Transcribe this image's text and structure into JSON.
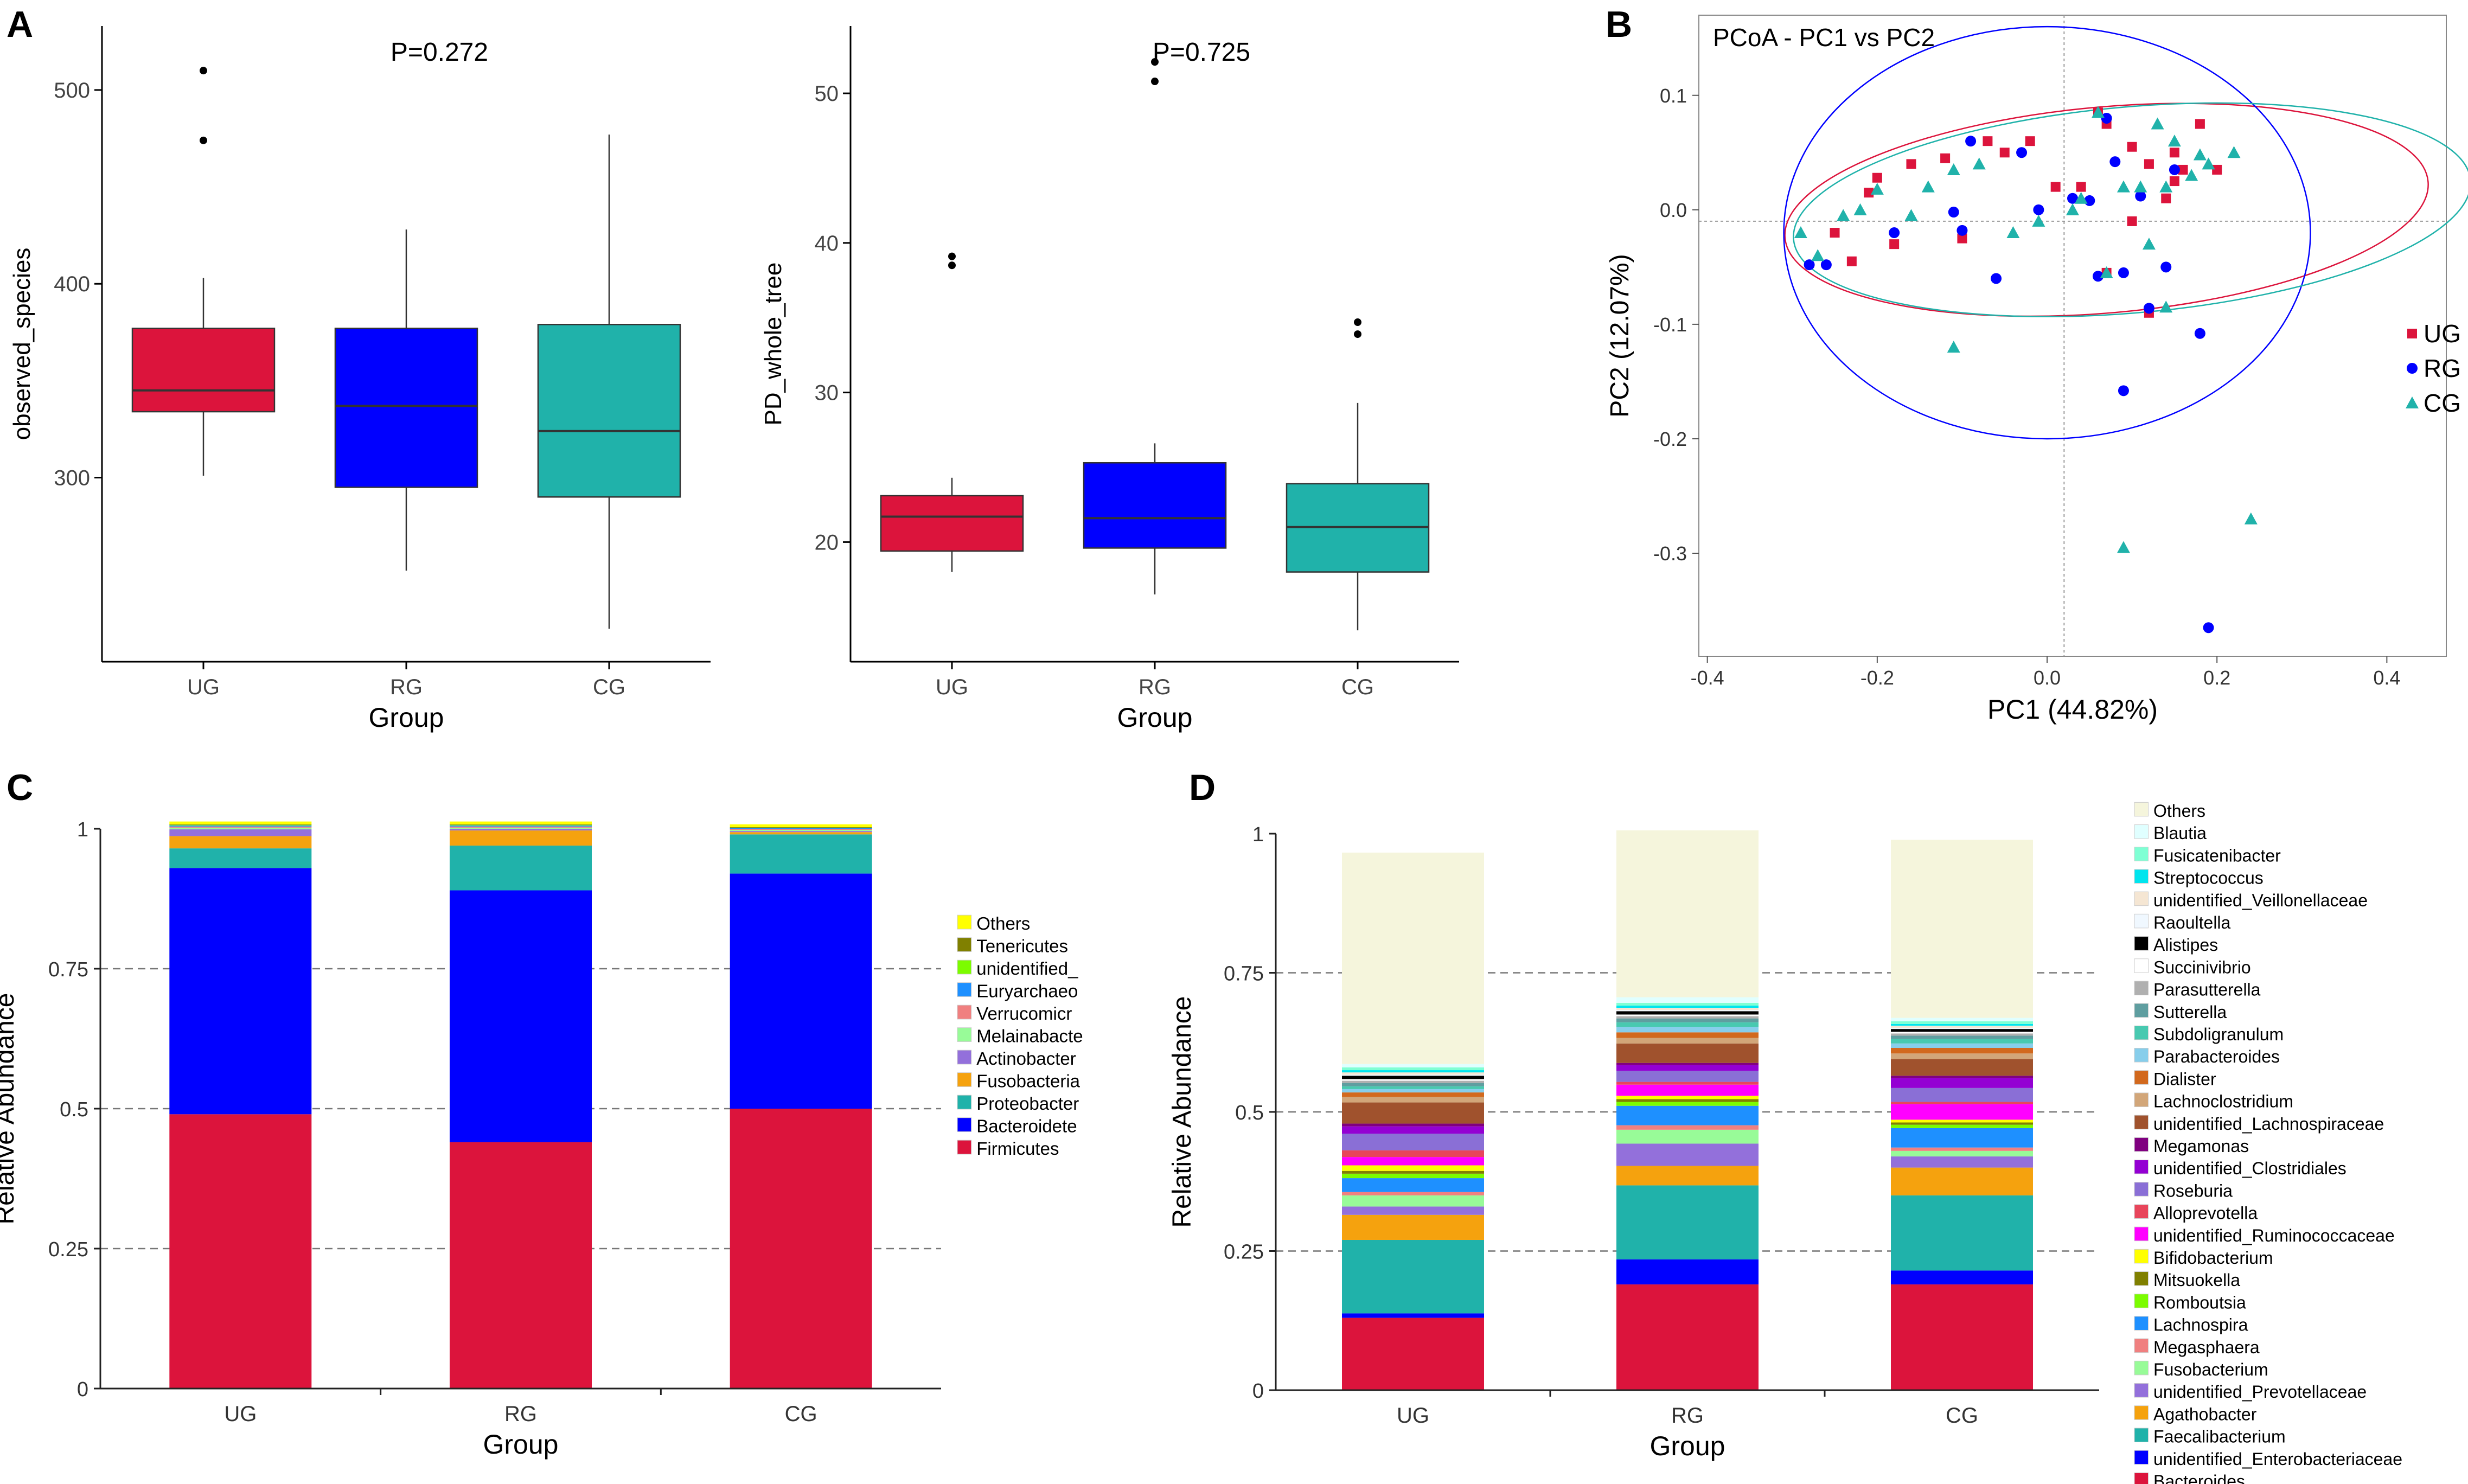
{
  "panel_labels": {
    "a": "A",
    "b": "B",
    "c": "C",
    "d": "D"
  },
  "colors": {
    "UG": "#dc143c",
    "RG": "#0000ff",
    "CG": "#20b2aa"
  },
  "chart_data": [
    {
      "id": "A1",
      "type": "box",
      "title": "P=0.272",
      "xlabel": "Group",
      "ylabel": "observed_species",
      "categories": [
        "UG",
        "RG",
        "CG"
      ],
      "yticks": [
        300,
        400,
        500
      ],
      "ylim": [
        205,
        533
      ],
      "boxes": [
        {
          "group": "UG",
          "whisker_low": 301,
          "q1": 334,
          "median": 345,
          "q3": 377,
          "whisker_high": 403,
          "outliers": [
            474,
            510
          ]
        },
        {
          "group": "RG",
          "whisker_low": 252,
          "q1": 295,
          "median": 337,
          "q3": 377,
          "whisker_high": 428,
          "outliers": []
        },
        {
          "group": "CG",
          "whisker_low": 222,
          "q1": 290,
          "median": 324,
          "q3": 379,
          "whisker_high": 477,
          "outliers": []
        }
      ]
    },
    {
      "id": "A2",
      "type": "box",
      "title": "P=0.725",
      "xlabel": "Group",
      "ylabel": "PD_whole_tree",
      "categories": [
        "UG",
        "RG",
        "CG"
      ],
      "yticks": [
        20,
        30,
        40,
        50
      ],
      "ylim": [
        12,
        54.5
      ],
      "boxes": [
        {
          "group": "UG",
          "whisker_low": 18.0,
          "q1": 19.4,
          "median": 21.7,
          "q3": 23.1,
          "whisker_high": 24.3,
          "outliers": [
            38.5,
            39.1
          ]
        },
        {
          "group": "RG",
          "whisker_low": 16.5,
          "q1": 19.6,
          "median": 21.6,
          "q3": 25.3,
          "whisker_high": 26.6,
          "outliers": [
            50.8,
            52.1
          ]
        },
        {
          "group": "CG",
          "whisker_low": 14.1,
          "q1": 18.0,
          "median": 21.0,
          "q3": 23.9,
          "whisker_high": 29.3,
          "outliers": [
            33.9,
            34.7
          ]
        }
      ]
    },
    {
      "id": "B",
      "type": "scatter",
      "title": "PCoA - PC1 vs PC2",
      "xlabel": "PC1 (44.82%)",
      "ylabel": "PC2 (12.07%)",
      "xticks": [
        -0.4,
        -0.2,
        0.0,
        0.2,
        0.4
      ],
      "yticks": [
        0.1,
        0.0,
        -0.1,
        -0.2,
        -0.3
      ],
      "xtick_labels": [
        "-0.4",
        "-0.2",
        "0.0",
        "0.2",
        "0.4"
      ],
      "ytick_labels": [
        "0.1",
        "0.0",
        "-0.1",
        "-0.2",
        "-0.3"
      ],
      "xlim": [
        -0.41,
        0.47
      ],
      "ylim": [
        -0.39,
        0.17
      ],
      "reference_lines": {
        "x": 0.02,
        "y": -0.01
      },
      "legend": [
        {
          "name": "UG",
          "marker": "square"
        },
        {
          "name": "RG",
          "marker": "circle"
        },
        {
          "name": "CG",
          "marker": "triangle"
        }
      ],
      "ellipses": [
        {
          "group": "UG",
          "cx": 0.07,
          "cy": 0.0,
          "rx": 0.38,
          "ry": 0.09,
          "angle_deg": 5
        },
        {
          "group": "RG",
          "cx": 0.0,
          "cy": -0.02,
          "rx": 0.31,
          "ry": 0.18,
          "angle_deg": 0
        },
        {
          "group": "CG",
          "cx": 0.1,
          "cy": 0.0,
          "rx": 0.4,
          "ry": 0.09,
          "angle_deg": 5
        }
      ],
      "series": [
        {
          "name": "UG",
          "points": [
            [
              -0.25,
              -0.02
            ],
            [
              -0.23,
              -0.045
            ],
            [
              -0.21,
              0.015
            ],
            [
              -0.2,
              0.028
            ],
            [
              -0.18,
              -0.03
            ],
            [
              -0.16,
              0.04
            ],
            [
              -0.12,
              0.045
            ],
            [
              -0.1,
              -0.025
            ],
            [
              -0.07,
              0.06
            ],
            [
              -0.05,
              0.05
            ],
            [
              -0.02,
              0.06
            ],
            [
              0.01,
              0.02
            ],
            [
              0.04,
              0.02
            ],
            [
              0.06,
              0.085
            ],
            [
              0.07,
              0.075
            ],
            [
              0.1,
              0.055
            ],
            [
              0.12,
              0.04
            ],
            [
              0.15,
              0.05
            ],
            [
              0.15,
              0.025
            ],
            [
              0.18,
              0.075
            ],
            [
              0.2,
              0.035
            ],
            [
              0.14,
              0.01
            ],
            [
              0.1,
              -0.01
            ],
            [
              0.12,
              -0.09
            ],
            [
              0.16,
              0.035
            ],
            [
              0.07,
              -0.055
            ]
          ]
        },
        {
          "name": "RG",
          "points": [
            [
              -0.28,
              -0.048
            ],
            [
              -0.26,
              -0.048
            ],
            [
              -0.18,
              -0.02
            ],
            [
              -0.11,
              -0.002
            ],
            [
              -0.1,
              -0.018
            ],
            [
              -0.09,
              0.06
            ],
            [
              -0.06,
              -0.06
            ],
            [
              -0.03,
              0.05
            ],
            [
              -0.01,
              0.0
            ],
            [
              0.03,
              0.01
            ],
            [
              0.06,
              -0.058
            ],
            [
              0.07,
              0.08
            ],
            [
              0.08,
              0.042
            ],
            [
              0.09,
              -0.055
            ],
            [
              0.11,
              0.012
            ],
            [
              0.14,
              -0.05
            ],
            [
              0.15,
              0.035
            ],
            [
              0.18,
              -0.108
            ],
            [
              0.12,
              -0.086
            ],
            [
              0.05,
              0.008
            ],
            [
              0.09,
              -0.158
            ],
            [
              0.19,
              -0.365
            ]
          ]
        },
        {
          "name": "CG",
          "points": [
            [
              -0.29,
              -0.02
            ],
            [
              -0.27,
              -0.04
            ],
            [
              -0.24,
              -0.005
            ],
            [
              -0.22,
              0.0
            ],
            [
              -0.2,
              0.018
            ],
            [
              -0.16,
              -0.005
            ],
            [
              -0.14,
              0.02
            ],
            [
              -0.11,
              0.035
            ],
            [
              -0.08,
              0.04
            ],
            [
              -0.04,
              -0.02
            ],
            [
              -0.01,
              -0.01
            ],
            [
              0.03,
              0.0
            ],
            [
              0.04,
              0.01
            ],
            [
              0.06,
              0.085
            ],
            [
              0.09,
              0.02
            ],
            [
              0.11,
              0.02
            ],
            [
              0.13,
              0.075
            ],
            [
              0.15,
              0.06
            ],
            [
              0.17,
              0.03
            ],
            [
              0.18,
              0.048
            ],
            [
              0.22,
              0.05
            ],
            [
              0.19,
              0.04
            ],
            [
              0.14,
              0.02
            ],
            [
              0.12,
              -0.03
            ],
            [
              0.07,
              -0.055
            ],
            [
              -0.11,
              -0.12
            ],
            [
              0.14,
              -0.085
            ],
            [
              0.09,
              -0.295
            ],
            [
              0.24,
              -0.27
            ]
          ]
        }
      ]
    },
    {
      "id": "C",
      "type": "stacked_bar",
      "xlabel": "Group",
      "ylabel": "Relative Abundance",
      "categories": [
        "UG",
        "RG",
        "CG"
      ],
      "yticks": [
        0,
        0.25,
        0.5,
        0.75,
        1
      ],
      "ytick_labels": [
        "0",
        "0.25",
        "0.5",
        "0.75",
        "1"
      ],
      "ylim": [
        0,
        1
      ],
      "series": [
        {
          "name": "Firmicutes",
          "color": "#dc143c",
          "values": [
            0.49,
            0.44,
            0.5
          ]
        },
        {
          "name": "Bacteroidetes",
          "color": "#0000ff",
          "values": [
            0.44,
            0.45,
            0.42
          ]
        },
        {
          "name": "Proteobacteria",
          "color": "#20b2aa",
          "values": [
            0.035,
            0.08,
            0.07
          ]
        },
        {
          "name": "Fusobacteria",
          "color": "#f5a20e",
          "values": [
            0.022,
            0.027,
            0.004
          ]
        },
        {
          "name": "Actinobacteria",
          "color": "#9370db",
          "values": [
            0.012,
            0.003,
            0.002
          ]
        },
        {
          "name": "Melainabacteria",
          "color": "#98fb98",
          "values": [
            0.003,
            0.002,
            0.002
          ]
        },
        {
          "name": "Verrucomicrobia",
          "color": "#f08080",
          "values": [
            0.002,
            0.002,
            0.002
          ]
        },
        {
          "name": "Euryarchaeota",
          "color": "#1e90ff",
          "values": [
            0.002,
            0.002,
            0.001
          ]
        },
        {
          "name": "unidentified_Bacteria",
          "color": "#7cfc00",
          "values": [
            0.001,
            0.001,
            0.001
          ]
        },
        {
          "name": "Tenericutes",
          "color": "#808000",
          "values": [
            0.001,
            0.001,
            0.001
          ]
        },
        {
          "name": "Others",
          "color": "#ffff00",
          "values": [
            0.005,
            0.005,
            0.005
          ]
        }
      ],
      "legend": [
        "Others",
        "Tenericutes",
        "unidentified_",
        "Euryarchaeo",
        "Verrucomicr",
        "Melainabacte",
        "Actinobacter",
        "Fusobacteria",
        "Proteobacter",
        "Bacteroidete",
        "Firmicutes"
      ]
    },
    {
      "id": "D",
      "type": "stacked_bar",
      "xlabel": "Group",
      "ylabel": "Relative Abundance",
      "categories": [
        "UG",
        "RG",
        "CG"
      ],
      "yticks": [
        0,
        0.25,
        0.5,
        0.75,
        1
      ],
      "ytick_labels": [
        "0",
        "0.25",
        "0.5",
        "0.75",
        "1"
      ],
      "ylim": [
        0,
        1
      ],
      "series": [
        {
          "name": "Bacteroides",
          "color": "#dc143c",
          "values": [
            0.13,
            0.19,
            0.19
          ]
        },
        {
          "name": "unidentified_Enterobacteriaceae",
          "color": "#0000ff",
          "values": [
            0.008,
            0.045,
            0.025
          ]
        },
        {
          "name": "Faecalibacterium",
          "color": "#20b2aa",
          "values": [
            0.132,
            0.133,
            0.135
          ]
        },
        {
          "name": "Agathobacter",
          "color": "#f5a20e",
          "values": [
            0.045,
            0.035,
            0.05
          ]
        },
        {
          "name": "unidentified_Prevotellaceae",
          "color": "#9370db",
          "values": [
            0.015,
            0.04,
            0.02
          ]
        },
        {
          "name": "Fusobacterium",
          "color": "#98fb98",
          "values": [
            0.02,
            0.025,
            0.01
          ]
        },
        {
          "name": "Megasphaera",
          "color": "#f08080",
          "values": [
            0.006,
            0.008,
            0.006
          ]
        },
        {
          "name": "Lachnospira",
          "color": "#1e90ff",
          "values": [
            0.025,
            0.035,
            0.035
          ]
        },
        {
          "name": "Romboutsia",
          "color": "#7cfc00",
          "values": [
            0.008,
            0.007,
            0.006
          ]
        },
        {
          "name": "Mitsuokella",
          "color": "#808000",
          "values": [
            0.005,
            0.005,
            0.004
          ]
        },
        {
          "name": "Bifidobacterium",
          "color": "#ffff00",
          "values": [
            0.01,
            0.006,
            0.005
          ]
        },
        {
          "name": "unidentified_Ruminococcaceae",
          "color": "#ff00ff",
          "values": [
            0.015,
            0.02,
            0.028
          ]
        },
        {
          "name": "Alloprevotella",
          "color": "#e8455b",
          "values": [
            0.012,
            0.005,
            0.004
          ]
        },
        {
          "name": "Roseburia",
          "color": "#8a6fd6",
          "values": [
            0.03,
            0.02,
            0.025
          ]
        },
        {
          "name": "unidentified_Clostridiales",
          "color": "#9400d3",
          "values": [
            0.013,
            0.01,
            0.018
          ]
        },
        {
          "name": "Megamonas",
          "color": "#800080",
          "values": [
            0.005,
            0.004,
            0.004
          ]
        },
        {
          "name": "unidentified_Lachnospiraceae",
          "color": "#a0522d",
          "values": [
            0.038,
            0.035,
            0.03
          ]
        },
        {
          "name": "Lachnoclostridium",
          "color": "#d2a679",
          "values": [
            0.01,
            0.01,
            0.01
          ]
        },
        {
          "name": "Dialister",
          "color": "#d2691e",
          "values": [
            0.008,
            0.01,
            0.01
          ]
        },
        {
          "name": "Parabacteroides",
          "color": "#87ceeb",
          "values": [
            0.006,
            0.01,
            0.008
          ]
        },
        {
          "name": "Subdoligranulum",
          "color": "#48c9b0",
          "values": [
            0.005,
            0.008,
            0.008
          ]
        },
        {
          "name": "Sutterella",
          "color": "#5f9ea0",
          "values": [
            0.006,
            0.007,
            0.006
          ]
        },
        {
          "name": "Parasutterella",
          "color": "#b0b0b0",
          "values": [
            0.004,
            0.004,
            0.004
          ]
        },
        {
          "name": "Succinivibrio",
          "color": "#ffffff",
          "values": [
            0.003,
            0.003,
            0.003
          ]
        },
        {
          "name": "Alistipes",
          "color": "#000000",
          "values": [
            0.006,
            0.006,
            0.005
          ]
        },
        {
          "name": "Raoultella",
          "color": "#f0f8ff",
          "values": [
            0.002,
            0.002,
            0.002
          ]
        },
        {
          "name": "unidentified_Veillonellaceae",
          "color": "#f5e6d3",
          "values": [
            0.004,
            0.004,
            0.004
          ]
        },
        {
          "name": "Streptococcus",
          "color": "#00e5ee",
          "values": [
            0.004,
            0.004,
            0.003
          ]
        },
        {
          "name": "Fusicatenibacter",
          "color": "#7fffd4",
          "values": [
            0.005,
            0.005,
            0.005
          ]
        },
        {
          "name": "Blautia",
          "color": "#e0ffff",
          "values": [
            0.006,
            0.01,
            0.006
          ]
        },
        {
          "name": "Others",
          "color": "#f5f5dc",
          "values": [
            0.38,
            0.3,
            0.32
          ]
        }
      ],
      "legend": [
        "Others",
        "Blautia",
        "Fusicatenibacter",
        "Streptococcus",
        "unidentified_Veillonellaceae",
        "Raoultella",
        "Alistipes",
        "Succinivibrio",
        "Parasutterella",
        "Sutterella",
        "Subdoligranulum",
        "Parabacteroides",
        "Dialister",
        "Lachnoclostridium",
        "unidentified_Lachnospiraceae",
        "Megamonas",
        "unidentified_Clostridiales",
        "Roseburia",
        "Alloprevotella",
        "unidentified_Ruminococcaceae",
        "Bifidobacterium",
        "Mitsuokella",
        "Romboutsia",
        "Lachnospira",
        "Megasphaera",
        "Fusobacterium",
        "unidentified_Prevotellaceae",
        "Agathobacter",
        "Faecalibacterium",
        "unidentified_Enterobacteriaceae",
        "Bacteroides"
      ]
    }
  ]
}
